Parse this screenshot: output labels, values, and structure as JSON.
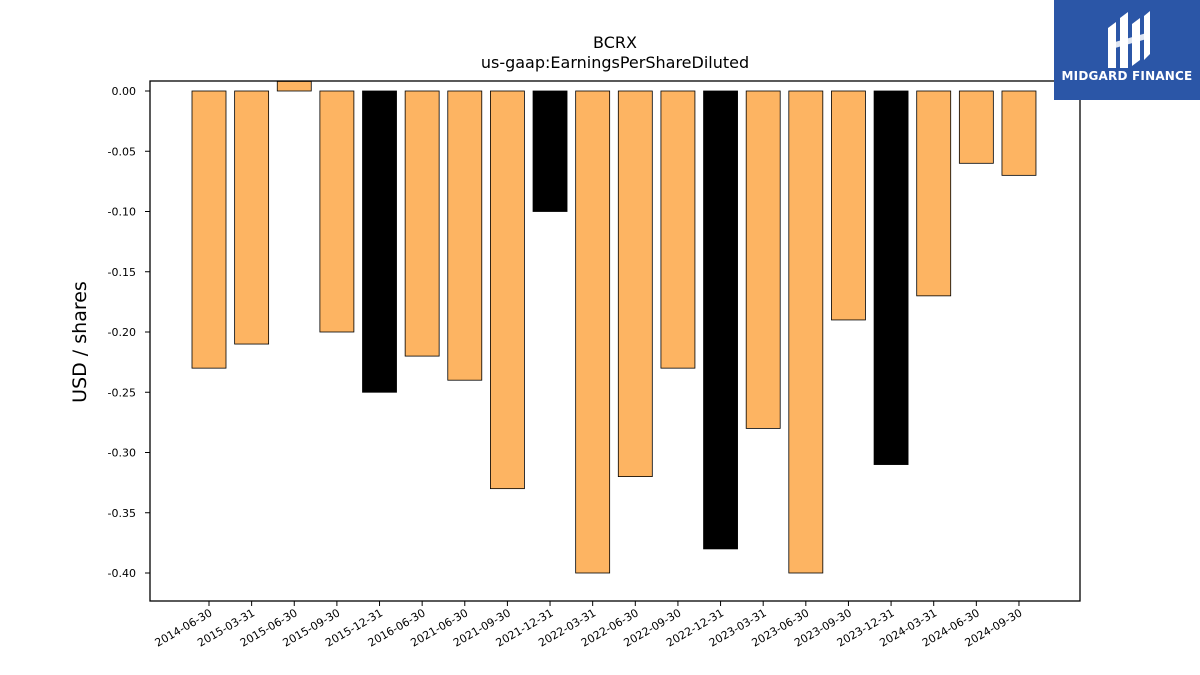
{
  "brand": {
    "name": "MIDGARD FINANCE",
    "logo_icon": "midgard-finance-logo-icon",
    "background_color": "#2b56a7"
  },
  "chart_data": {
    "type": "bar",
    "title": "BCRX",
    "subtitle": "us-gaap:EarningsPerShareDiluted",
    "xlabel": "",
    "ylabel": "USD / shares",
    "ylim": [
      -0.42,
      0.008
    ],
    "yticks": [
      "0.00",
      "-0.05",
      "-0.10",
      "-0.15",
      "-0.20",
      "-0.25",
      "-0.30",
      "-0.35",
      "-0.40"
    ],
    "ytick_values": [
      0.0,
      -0.05,
      -0.1,
      -0.15,
      -0.2,
      -0.25,
      -0.3,
      -0.35,
      -0.4
    ],
    "categories": [
      "2014-06-30",
      "2015-03-31",
      "2015-06-30",
      "2015-09-30",
      "2015-12-31",
      "2016-06-30",
      "2021-06-30",
      "2021-09-30",
      "2021-12-31",
      "2022-03-31",
      "2022-06-30",
      "2022-09-30",
      "2022-12-31",
      "2023-03-31",
      "2023-06-30",
      "2023-09-30",
      "2023-12-31",
      "2024-03-31",
      "2024-06-30",
      "2024-09-30"
    ],
    "values": [
      -0.23,
      -0.21,
      0.008,
      -0.2,
      -0.25,
      -0.22,
      -0.24,
      -0.33,
      -0.1,
      -0.4,
      -0.32,
      -0.23,
      -0.38,
      -0.28,
      -0.4,
      -0.19,
      -0.31,
      -0.17,
      -0.06,
      -0.07
    ],
    "bar_colors": [
      "#fdb462",
      "#fdb462",
      "#fdb462",
      "#fdb462",
      "#000000",
      "#fdb462",
      "#fdb462",
      "#fdb462",
      "#000000",
      "#fdb462",
      "#fdb462",
      "#fdb462",
      "#000000",
      "#fdb462",
      "#fdb462",
      "#fdb462",
      "#000000",
      "#fdb462",
      "#fdb462",
      "#fdb462"
    ],
    "colors": {
      "quarterly": "#fdb462",
      "year_end": "#000000"
    },
    "grid": false,
    "legend": "none"
  }
}
